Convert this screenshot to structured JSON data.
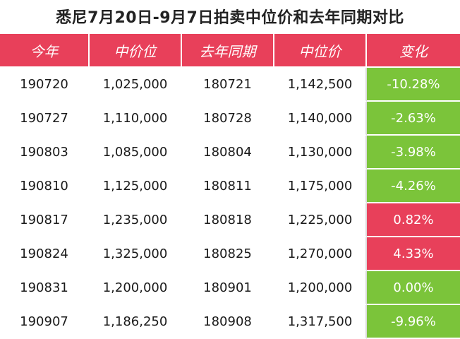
{
  "title": "悉尼7月20日-9月7日拍卖中位价和去年同期对比",
  "colors": {
    "header_bg": "#e8405a",
    "negative_bg": "#7bc43a",
    "positive_bg": "#e8405a"
  },
  "headers": [
    "今年",
    "中价位",
    "去年同期",
    "中位价",
    "变化"
  ],
  "rows": [
    {
      "this_year": "190720",
      "this_median": "1,025,000",
      "last_year": "180721",
      "last_median": "1,142,500",
      "change": "-10.28%",
      "direction": "neg"
    },
    {
      "this_year": "190727",
      "this_median": "1,110,000",
      "last_year": "180728",
      "last_median": "1,140,000",
      "change": "-2.63%",
      "direction": "neg"
    },
    {
      "this_year": "190803",
      "this_median": "1,085,000",
      "last_year": "180804",
      "last_median": "1,130,000",
      "change": "-3.98%",
      "direction": "neg"
    },
    {
      "this_year": "190810",
      "this_median": "1,125,000",
      "last_year": "180811",
      "last_median": "1,175,000",
      "change": "-4.26%",
      "direction": "neg"
    },
    {
      "this_year": "190817",
      "this_median": "1,235,000",
      "last_year": "180818",
      "last_median": "1,225,000",
      "change": "0.82%",
      "direction": "pos"
    },
    {
      "this_year": "190824",
      "this_median": "1,325,000",
      "last_year": "180825",
      "last_median": "1,270,000",
      "change": "4.33%",
      "direction": "pos"
    },
    {
      "this_year": "190831",
      "this_median": "1,200,000",
      "last_year": "180901",
      "last_median": "1,200,000",
      "change": "0.00%",
      "direction": "neg"
    },
    {
      "this_year": "190907",
      "this_median": "1,186,250",
      "last_year": "180908",
      "last_median": "1,317,500",
      "change": "-9.96%",
      "direction": "neg"
    }
  ]
}
